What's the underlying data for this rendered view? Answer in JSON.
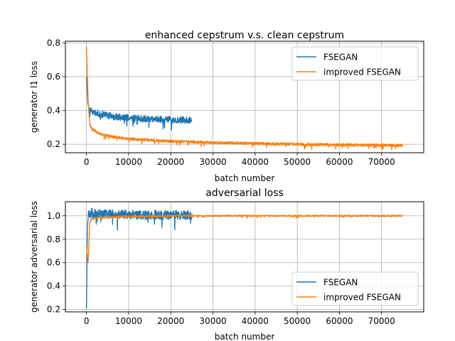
{
  "chart_data": [
    {
      "type": "line",
      "title": "enhanced cepstrum v.s. clean cepstrum",
      "xlabel": "batch number",
      "ylabel": "generator l1 loss",
      "xlim": [
        -5000,
        80000
      ],
      "ylim": [
        0.15,
        0.81
      ],
      "xticks": [
        0,
        10000,
        20000,
        30000,
        40000,
        50000,
        60000,
        70000
      ],
      "xtick_labels": [
        "0",
        "10000",
        "20000",
        "30000",
        "40000",
        "50000",
        "60000",
        "70000"
      ],
      "yticks": [
        0.2,
        0.4,
        0.6,
        0.8
      ],
      "ytick_labels": [
        "0.2",
        "0.4",
        "0.6",
        "0.8"
      ],
      "grid": true,
      "legend": "top-right",
      "series": [
        {
          "name": "FSEGAN",
          "color": "#1f77b4",
          "x_range": [
            0,
            25000
          ],
          "points": [
            [
              0,
              0.6
            ],
            [
              300,
              0.44
            ],
            [
              700,
              0.41
            ],
            [
              1500,
              0.395
            ],
            [
              3000,
              0.38
            ],
            [
              6000,
              0.365
            ],
            [
              10000,
              0.355
            ],
            [
              15000,
              0.35
            ],
            [
              20000,
              0.345
            ],
            [
              25000,
              0.343
            ]
          ],
          "noise": 0.02
        },
        {
          "name": "improved FSEGAN",
          "color": "#ff7f0e",
          "x_range": [
            0,
            75000
          ],
          "points": [
            [
              0,
              0.78
            ],
            [
              150,
              0.66
            ],
            [
              400,
              0.45
            ],
            [
              800,
              0.31
            ],
            [
              1500,
              0.29
            ],
            [
              3000,
              0.262
            ],
            [
              6000,
              0.245
            ],
            [
              10000,
              0.232
            ],
            [
              20000,
              0.218
            ],
            [
              30000,
              0.21
            ],
            [
              40000,
              0.205
            ],
            [
              50000,
              0.2
            ],
            [
              60000,
              0.197
            ],
            [
              75000,
              0.194
            ]
          ],
          "noise": 0.008
        }
      ]
    },
    {
      "type": "line",
      "title": "adversarial loss",
      "xlabel": "batch number",
      "ylabel": "generator adversarial loss",
      "xlim": [
        -5000,
        80000
      ],
      "ylim": [
        0.18,
        1.12
      ],
      "xticks": [
        0,
        10000,
        20000,
        30000,
        40000,
        50000,
        60000,
        70000
      ],
      "xtick_labels": [
        "0",
        "10000",
        "20000",
        "30000",
        "40000",
        "50000",
        "60000",
        "70000"
      ],
      "yticks": [
        0.2,
        0.4,
        0.6,
        0.8,
        1.0
      ],
      "ytick_labels": [
        "0.2",
        "0.4",
        "0.6",
        "0.8",
        "1.0"
      ],
      "grid": true,
      "legend": "bottom-right",
      "series": [
        {
          "name": "FSEGAN",
          "color": "#1f77b4",
          "x_range": [
            0,
            25000
          ],
          "points": [
            [
              0,
              0.21
            ],
            [
              200,
              0.9
            ],
            [
              500,
              1.03
            ],
            [
              2000,
              1.02
            ],
            [
              10000,
              1.01
            ],
            [
              25000,
              1.005
            ]
          ],
          "noise": 0.04
        },
        {
          "name": "improved FSEGAN",
          "color": "#ff7f0e",
          "x_range": [
            0,
            75000
          ],
          "points": [
            [
              0,
              0.75
            ],
            [
              400,
              0.6
            ],
            [
              800,
              0.95
            ],
            [
              1500,
              0.98
            ],
            [
              5000,
              0.99
            ],
            [
              20000,
              1.0
            ],
            [
              75000,
              1.0
            ]
          ],
          "noise": 0.006
        }
      ]
    }
  ]
}
